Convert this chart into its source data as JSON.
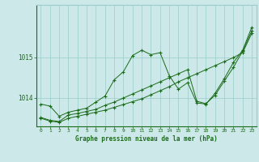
{
  "title": "Graphe pression niveau de la mer (hPa)",
  "bg_color": "#cce8e8",
  "grid_color": "#99cccc",
  "line_color": "#1a6b1a",
  "xlim": [
    -0.5,
    23.5
  ],
  "ylim": [
    1013.3,
    1016.3
  ],
  "yticks": [
    1014,
    1015
  ],
  "xticks": [
    0,
    1,
    2,
    3,
    4,
    5,
    6,
    7,
    8,
    9,
    10,
    11,
    12,
    13,
    14,
    15,
    16,
    17,
    18,
    19,
    20,
    21,
    22,
    23
  ],
  "s1": [
    1013.85,
    1013.8,
    1013.55,
    1013.65,
    1013.7,
    1013.75,
    1013.9,
    1014.05,
    1014.45,
    1014.65,
    1015.05,
    1015.18,
    1015.07,
    1015.12,
    1014.55,
    1014.22,
    1014.38,
    1013.88,
    1013.85,
    1014.12,
    1014.48,
    1014.88,
    1015.18,
    1015.75
  ],
  "s2": [
    1013.52,
    1013.45,
    1013.42,
    1013.58,
    1013.62,
    1013.67,
    1013.72,
    1013.82,
    1013.9,
    1014.0,
    1014.1,
    1014.2,
    1014.3,
    1014.4,
    1014.5,
    1014.6,
    1014.7,
    1013.92,
    1013.86,
    1014.07,
    1014.42,
    1014.76,
    1015.16,
    1015.66
  ],
  "s3": [
    1013.5,
    1013.43,
    1013.4,
    1013.5,
    1013.55,
    1013.6,
    1013.65,
    1013.7,
    1013.77,
    1013.84,
    1013.91,
    1013.98,
    1014.08,
    1014.18,
    1014.28,
    1014.4,
    1014.5,
    1014.6,
    1014.7,
    1014.8,
    1014.9,
    1015.0,
    1015.12,
    1015.6
  ]
}
